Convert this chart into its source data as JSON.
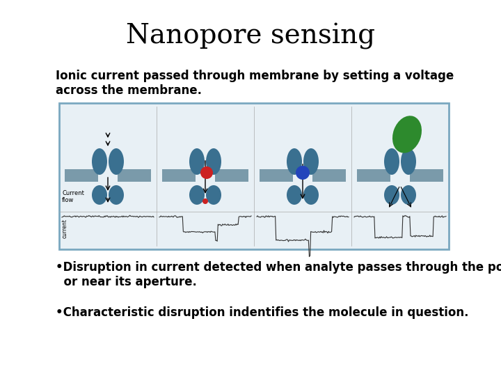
{
  "title": "Nanopore sensing",
  "subtitle": "Ionic current passed through membrane by setting a voltage\nacross the membrane.",
  "bullet1": "•Disruption in current detected when analyte passes through the pore\n  or near its aperture.",
  "bullet2": "•Characteristic disruption indentifies the molecule in question.",
  "title_fontsize": 28,
  "subtitle_fontsize": 12,
  "bullet_fontsize": 12,
  "bg_color": "#ffffff",
  "text_color": "#000000",
  "image_border_color": "#7aa8c0",
  "image_bg_color": "#e8f0f5",
  "membrane_color": "#7a9aaa",
  "pore_color": "#3a7090",
  "dot_red": "#cc2222",
  "dot_blue": "#2244bb",
  "oval_green": "#2d8a2d",
  "trace_color": "#333333"
}
